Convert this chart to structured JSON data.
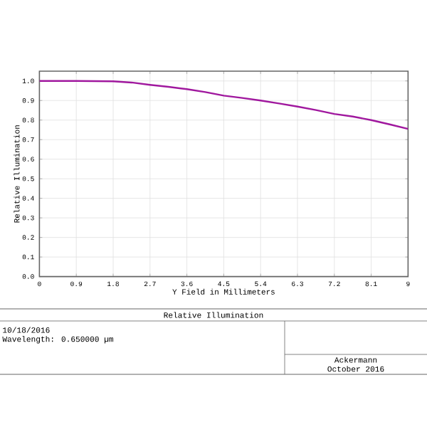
{
  "chart_data": {
    "type": "line",
    "title": "Relative Illumination",
    "xlabel": "Y Field in Millimeters",
    "ylabel": "Relative Illumination",
    "annotations": [
      "10/18/2016",
      "Wavelength: 0.650000 µm",
      "Ackermann",
      "October 2016"
    ],
    "x": [
      0,
      0.9,
      1.8,
      2.25,
      2.7,
      3.15,
      3.6,
      4.05,
      4.5,
      4.95,
      5.4,
      5.85,
      6.3,
      6.75,
      7.2,
      7.65,
      8.1,
      8.55,
      9
    ],
    "series": [
      {
        "color": "#a0189e",
        "values": [
          1.0,
          1.0,
          0.998,
          0.992,
          0.98,
          0.97,
          0.958,
          0.943,
          0.925,
          0.913,
          0.9,
          0.885,
          0.869,
          0.851,
          0.831,
          0.818,
          0.8,
          0.778,
          0.755
        ]
      }
    ],
    "xlim": [
      0,
      9
    ],
    "ylim": [
      0,
      1.05
    ],
    "xticks": [
      0,
      0.9,
      1.8,
      2.7,
      3.6,
      4.5,
      5.4,
      6.3,
      7.2,
      8.1,
      9
    ],
    "yticks": [
      {
        "value": 0,
        "label": "0.0"
      },
      0.1,
      0.2,
      0.3,
      0.4,
      0.5,
      0.6,
      0.7,
      0.8,
      0.9,
      {
        "value": 1,
        "label": "1.0"
      }
    ],
    "grid": true
  }
}
